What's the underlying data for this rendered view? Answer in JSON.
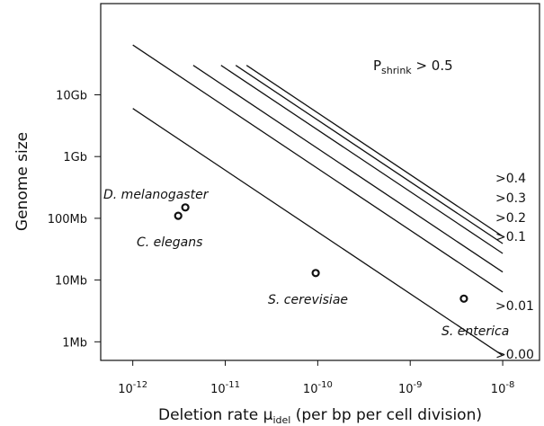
{
  "chart_data": {
    "type": "line",
    "xlabel": "Deletion rate μ_idel (per bp per cell division)",
    "xlabel_main": "Deletion rate ",
    "xlabel_symbol": "μ",
    "xlabel_sub": "idel",
    "xlabel_rest": " (per bp per cell division)",
    "ylabel": "Genome size",
    "x_scale": "log",
    "y_scale": "log",
    "xlim": [
      4.5e-13,
      2.5e-08
    ],
    "ylim": [
      500000,
      300000000000
    ],
    "x_ticks": [
      {
        "value": 1e-12,
        "base": "10",
        "exp": "-12"
      },
      {
        "value": 1e-11,
        "base": "10",
        "exp": "-11"
      },
      {
        "value": 1e-10,
        "base": "10",
        "exp": "-10"
      },
      {
        "value": 1e-09,
        "base": "10",
        "exp": "-9"
      },
      {
        "value": 1e-08,
        "base": "10",
        "exp": "-8"
      }
    ],
    "y_ticks": [
      {
        "value": 1000000,
        "label": "1Mb"
      },
      {
        "value": 10000000,
        "label": "10Mb"
      },
      {
        "value": 100000000,
        "label": "100Mb"
      },
      {
        "value": 1000000000,
        "label": "1Gb"
      },
      {
        "value": 10000000000,
        "label": "10Gb"
      }
    ],
    "series": [
      {
        "name": ">0.00",
        "x": [
          1e-08
        ],
        "y": [
          1200000
        ]
      },
      {
        "name": ">0.01",
        "x": [
          1e-12,
          1e-08
        ],
        "y": [
          6000000000,
          600000
        ]
      },
      {
        "name": ">0.1",
        "x": [
          1e-12,
          1e-08
        ],
        "y": [
          64000000000,
          6400000
        ]
      },
      {
        "name": ">0.2",
        "x": [
          4.5e-12,
          1e-08
        ],
        "y": [
          30000000000,
          13500000
        ]
      },
      {
        "name": ">0.3",
        "x": [
          9e-12,
          1e-08
        ],
        "y": [
          30000000000,
          27000000
        ]
      },
      {
        "name": ">0.4",
        "x": [
          1.3e-11,
          1e-08
        ],
        "y": [
          30000000000,
          39000000
        ]
      },
      {
        "name": "P_shrink > 0.5",
        "x": [
          1.7e-11,
          1e-08
        ],
        "y": [
          30000000000,
          51000000
        ]
      }
    ],
    "line_labels": [
      ">0.4",
      ">0.3",
      ">0.2",
      ">0.1",
      ">0.01",
      ">0.00"
    ],
    "title_annotation": {
      "main": "P",
      "sub": "shrink",
      "rest": " > 0.5"
    },
    "points": [
      {
        "name": "D. melanogaster",
        "x": 3.7e-12,
        "y": 150000000
      },
      {
        "name": "C. elegans",
        "x": 3.1e-12,
        "y": 110000000
      },
      {
        "name": "S. cerevisiae",
        "x": 9.5e-11,
        "y": 13000000
      },
      {
        "name": "S. enterica",
        "x": 3.8e-09,
        "y": 5000000
      }
    ],
    "grid": false
  }
}
